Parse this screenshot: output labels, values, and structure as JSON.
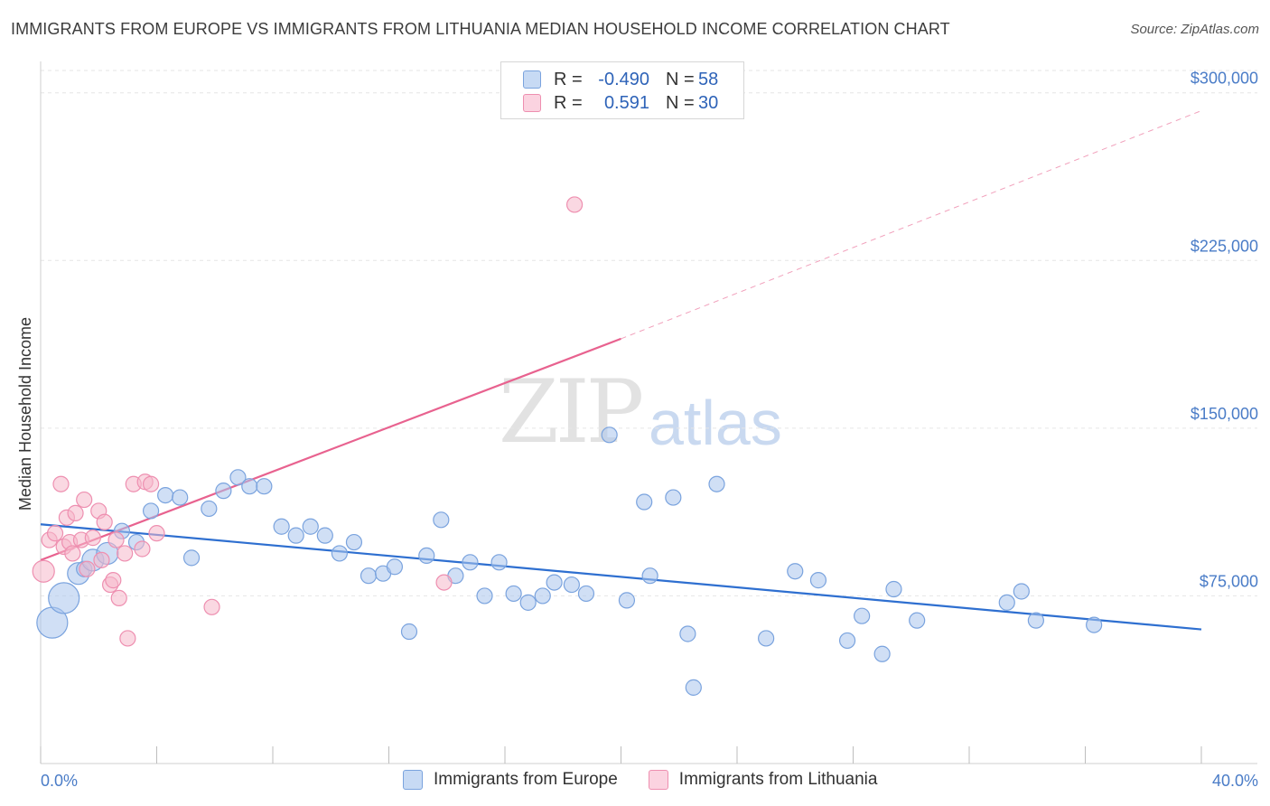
{
  "header": {
    "title": "IMMIGRANTS FROM EUROPE VS IMMIGRANTS FROM LITHUANIA MEDIAN HOUSEHOLD INCOME CORRELATION CHART",
    "source": "Source: ZipAtlas.com"
  },
  "watermark": {
    "zip": "ZIP",
    "atlas": "atlas"
  },
  "legend": {
    "rows": [
      {
        "r_label": "R =",
        "r_value": "-0.490",
        "n_label": "N =",
        "n_value": "58",
        "color": "#a9c4ec"
      },
      {
        "r_label": "R =",
        "r_value": "0.591",
        "n_label": "N =",
        "n_value": "30",
        "color": "#f5b8cb"
      }
    ]
  },
  "bottom_legend": {
    "europe": "Immigrants from Europe",
    "lithuania": "Immigrants from Lithuania"
  },
  "colors": {
    "europe_fill": "#a9c4ec",
    "europe_stroke": "#7aa3de",
    "europe_line": "#2e6fd0",
    "lithuania_fill": "#f5b8cb",
    "lithuania_stroke": "#ee8fb0",
    "lithuania_line": "#e8628f",
    "grid": "#e6e6e6",
    "tick_text": "#4a7cc7"
  },
  "chart_data": {
    "type": "scatter",
    "title": "IMMIGRANTS FROM EUROPE VS IMMIGRANTS FROM LITHUANIA MEDIAN HOUSEHOLD INCOME CORRELATION CHART",
    "xlabel": "",
    "ylabel": "Median Household Income",
    "xlim": [
      0,
      40
    ],
    "ylim": [
      0,
      310000
    ],
    "x_tick_labels": [
      "0.0%",
      "40.0%"
    ],
    "y_ticks": [
      75000,
      150000,
      225000,
      300000
    ],
    "y_tick_labels": [
      "$75,000",
      "$150,000",
      "$225,000",
      "$300,000"
    ],
    "grid": true,
    "legend_position": "top-center",
    "series": [
      {
        "name": "Immigrants from Europe",
        "points": [
          [
            0.4,
            63000,
            3
          ],
          [
            0.8,
            74000,
            3
          ],
          [
            1.3,
            85000,
            2
          ],
          [
            1.5,
            87000,
            1
          ],
          [
            1.8,
            91000,
            2
          ],
          [
            2.3,
            94000,
            2
          ],
          [
            2.8,
            104000,
            1
          ],
          [
            3.3,
            99000,
            1
          ],
          [
            3.8,
            113000,
            1
          ],
          [
            4.3,
            120000,
            1
          ],
          [
            4.8,
            119000,
            1
          ],
          [
            5.2,
            92000,
            1
          ],
          [
            5.8,
            114000,
            1
          ],
          [
            6.3,
            122000,
            1
          ],
          [
            6.8,
            128000,
            1
          ],
          [
            7.2,
            124000,
            1
          ],
          [
            7.7,
            124000,
            1
          ],
          [
            8.3,
            106000,
            1
          ],
          [
            8.8,
            102000,
            1
          ],
          [
            9.3,
            106000,
            1
          ],
          [
            9.8,
            102000,
            1
          ],
          [
            10.3,
            94000,
            1
          ],
          [
            10.8,
            99000,
            1
          ],
          [
            11.3,
            84000,
            1
          ],
          [
            11.8,
            85000,
            1
          ],
          [
            12.2,
            88000,
            1
          ],
          [
            12.7,
            59000,
            1
          ],
          [
            13.3,
            93000,
            1
          ],
          [
            13.8,
            109000,
            1
          ],
          [
            14.3,
            84000,
            1
          ],
          [
            14.8,
            90000,
            1
          ],
          [
            15.3,
            75000,
            1
          ],
          [
            15.8,
            90000,
            1
          ],
          [
            16.3,
            76000,
            1
          ],
          [
            16.8,
            72000,
            1
          ],
          [
            17.3,
            75000,
            1
          ],
          [
            17.7,
            81000,
            1
          ],
          [
            18.3,
            80000,
            1
          ],
          [
            18.8,
            76000,
            1
          ],
          [
            19.6,
            147000,
            1
          ],
          [
            20.2,
            73000,
            1
          ],
          [
            20.8,
            117000,
            1
          ],
          [
            21.0,
            84000,
            1
          ],
          [
            21.8,
            119000,
            1
          ],
          [
            22.3,
            58000,
            1
          ],
          [
            22.5,
            34000,
            1
          ],
          [
            23.3,
            125000,
            1
          ],
          [
            25.0,
            56000,
            1
          ],
          [
            26.0,
            86000,
            1
          ],
          [
            26.8,
            82000,
            1
          ],
          [
            27.8,
            55000,
            1
          ],
          [
            28.3,
            66000,
            1
          ],
          [
            29.0,
            49000,
            1
          ],
          [
            29.4,
            78000,
            1
          ],
          [
            30.2,
            64000,
            1
          ],
          [
            33.3,
            72000,
            1
          ],
          [
            33.8,
            77000,
            1
          ],
          [
            34.3,
            64000,
            1
          ],
          [
            36.3,
            62000,
            1
          ]
        ]
      },
      {
        "name": "Immigrants from Lithuania",
        "points": [
          [
            0.1,
            86000,
            2
          ],
          [
            0.3,
            100000,
            1
          ],
          [
            0.5,
            103000,
            1
          ],
          [
            0.7,
            125000,
            1
          ],
          [
            0.8,
            97000,
            1
          ],
          [
            0.9,
            110000,
            1
          ],
          [
            1.0,
            99000,
            1
          ],
          [
            1.1,
            94000,
            1
          ],
          [
            1.2,
            112000,
            1
          ],
          [
            1.4,
            100000,
            1
          ],
          [
            1.5,
            118000,
            1
          ],
          [
            1.6,
            87000,
            1
          ],
          [
            1.8,
            101000,
            1
          ],
          [
            2.0,
            113000,
            1
          ],
          [
            2.1,
            91000,
            1
          ],
          [
            2.2,
            108000,
            1
          ],
          [
            2.4,
            80000,
            1
          ],
          [
            2.5,
            82000,
            1
          ],
          [
            2.6,
            100000,
            1
          ],
          [
            2.7,
            74000,
            1
          ],
          [
            2.9,
            94000,
            1
          ],
          [
            3.0,
            56000,
            1
          ],
          [
            3.2,
            125000,
            1
          ],
          [
            3.5,
            96000,
            1
          ],
          [
            3.6,
            126000,
            1
          ],
          [
            3.8,
            125000,
            1
          ],
          [
            5.9,
            70000,
            1
          ],
          [
            13.9,
            81000,
            1
          ],
          [
            18.4,
            250000,
            1
          ],
          [
            4.0,
            103000,
            1
          ]
        ]
      }
    ],
    "trendlines": [
      {
        "series": "Immigrants from Europe",
        "x": [
          0,
          40
        ],
        "y": [
          107000,
          60000
        ]
      },
      {
        "series": "Immigrants from Lithuania",
        "x": [
          0,
          20
        ],
        "y": [
          91000,
          190000
        ],
        "extend_dashed_to": [
          40,
          292000
        ]
      }
    ]
  }
}
